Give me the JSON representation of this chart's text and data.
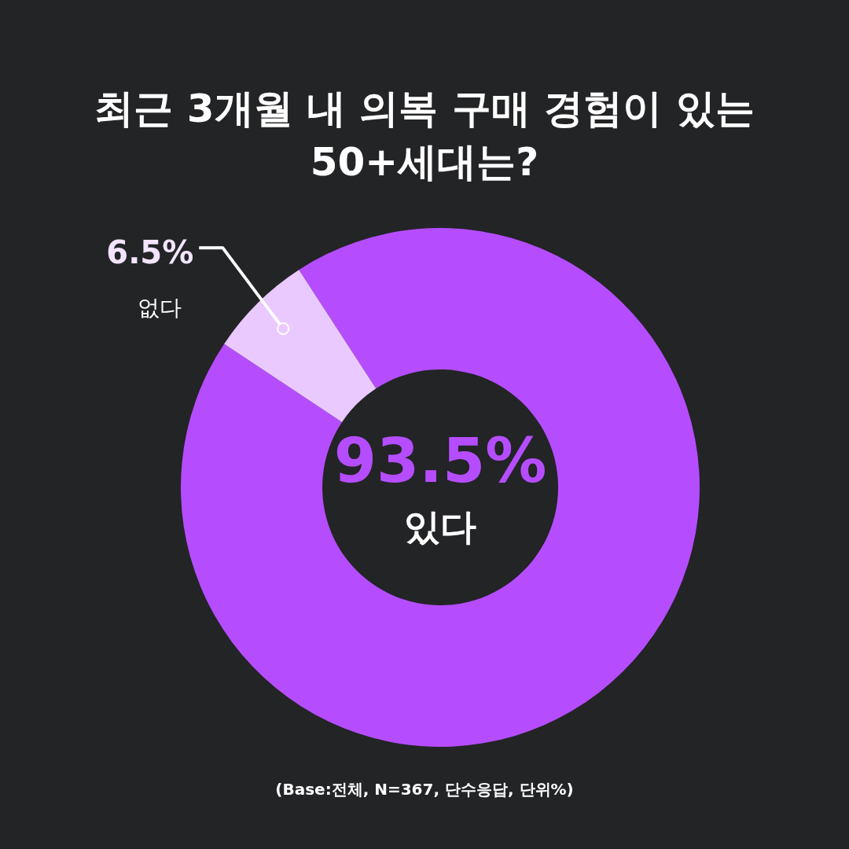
{
  "chart_data": {
    "type": "donut",
    "title": "최근 3개월 내 의복 구매 경험이 있는\n50+세대는?",
    "categories": [
      "있다",
      "없다"
    ],
    "values": [
      93.5,
      6.5
    ],
    "value_labels": [
      "93.5%",
      "6.5%"
    ],
    "colors": [
      "#b54dff",
      "#e9c9ff"
    ],
    "annotations": [
      "(Base:전체, N=367, 단수응답, 단위%)"
    ]
  }
}
